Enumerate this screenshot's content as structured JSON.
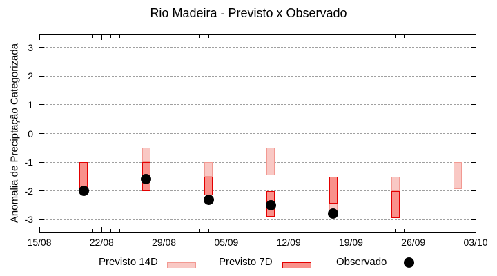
{
  "chart_data": {
    "type": "range-bar",
    "title": "Rio Madeira - Previsto x Observado",
    "ylabel": "Anomalia de Preciptação Categorizada",
    "xlabel": "",
    "ylim": [
      -3.43,
      3.43
    ],
    "y_ticks": [
      3,
      2,
      1,
      0,
      -1,
      -2,
      -3
    ],
    "x_range_days": 49,
    "x_ticks": [
      {
        "day": 0,
        "label": "15/08"
      },
      {
        "day": 7,
        "label": "22/08"
      },
      {
        "day": 14,
        "label": "29/08"
      },
      {
        "day": 21,
        "label": "05/09"
      },
      {
        "day": 28,
        "label": "12/09"
      },
      {
        "day": 35,
        "label": "19/09"
      },
      {
        "day": 42,
        "label": "26/09"
      },
      {
        "day": 49,
        "label": "03/10"
      }
    ],
    "grid": "horizontal dashed gray lines at integer y values",
    "legend_position": "bottom",
    "legend": [
      {
        "label": "Previsto 14D",
        "marker": "light-pink-box"
      },
      {
        "label": "Previsto 7D",
        "marker": "red-box"
      },
      {
        "label": "Observado",
        "marker": "black-dot"
      }
    ],
    "series": [
      {
        "date": "20/08",
        "day": 5,
        "previsto_14d": null,
        "previsto_7d": [
          -1.0,
          -1.95
        ],
        "observado": -2.0
      },
      {
        "date": "27/08",
        "day": 12,
        "previsto_14d": [
          -0.5,
          -1.0
        ],
        "previsto_7d": [
          -1.0,
          -2.0
        ],
        "observado": -1.6
      },
      {
        "date": "03/09",
        "day": 19,
        "previsto_14d": [
          -1.0,
          -1.5
        ],
        "previsto_7d": [
          -1.5,
          -2.15
        ],
        "observado": -2.3
      },
      {
        "date": "10/09",
        "day": 26,
        "previsto_14d": [
          -0.5,
          -1.45
        ],
        "previsto_7d": [
          -2.0,
          -2.9
        ],
        "observado": -2.5
      },
      {
        "date": "17/09",
        "day": 33,
        "previsto_14d": [
          -1.5,
          -2.85
        ],
        "previsto_7d": [
          -1.5,
          -2.45
        ],
        "observado": -2.8
      },
      {
        "date": "24/09",
        "day": 40,
        "previsto_14d": [
          -1.5,
          -2.0
        ],
        "previsto_7d": [
          -2.0,
          -2.95
        ],
        "observado": null
      },
      {
        "date": "01/10",
        "day": 47,
        "previsto_14d": [
          -1.0,
          -1.95
        ],
        "previsto_7d": null,
        "observado": null
      }
    ],
    "colors": {
      "previsto_14d_fill": "#f9c8c4",
      "previsto_14d_border": "#f29992",
      "previsto_7d_fill": "#f9918b",
      "previsto_7d_border": "#e30000",
      "observado": "#000000",
      "grid": "#a0a0a0",
      "axis": "#000000",
      "background": "#ffffff"
    }
  }
}
